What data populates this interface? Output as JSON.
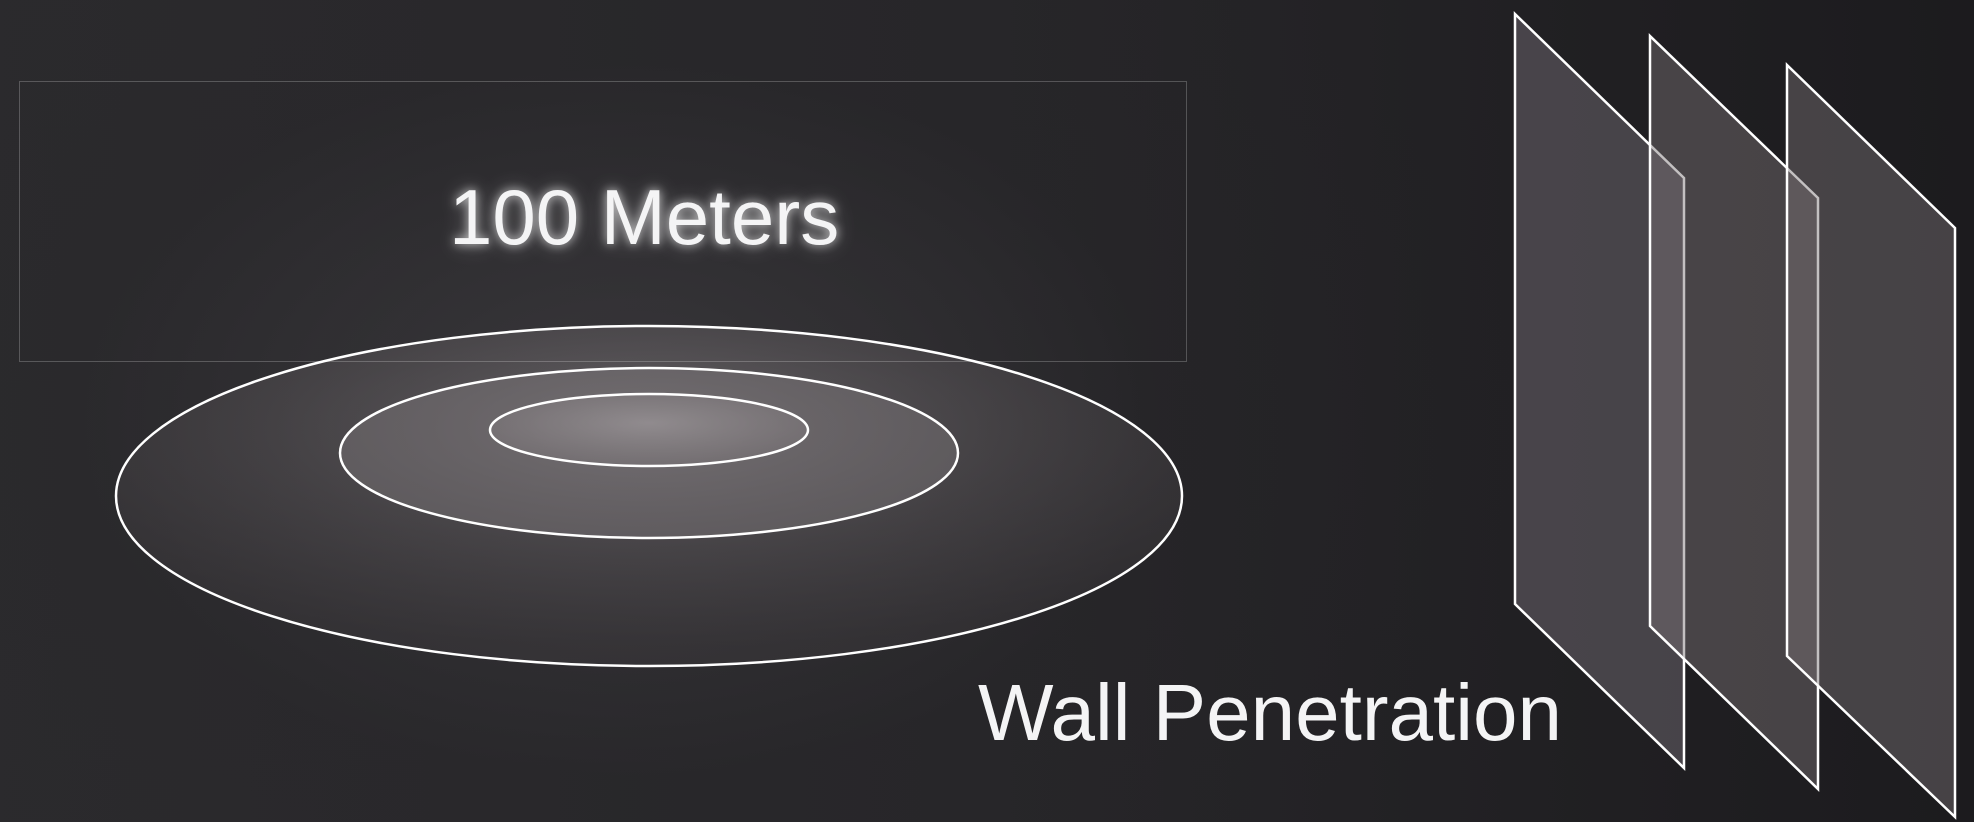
{
  "range": {
    "label": "100 Meters"
  },
  "walls": {
    "label": "Wall Penetration",
    "count": 3
  },
  "colors": {
    "background": "#262528",
    "outline": "#ffffff",
    "panel_fill": "#6e686b",
    "ring_fill": "#8a8588",
    "text": "#f4f4f5"
  }
}
